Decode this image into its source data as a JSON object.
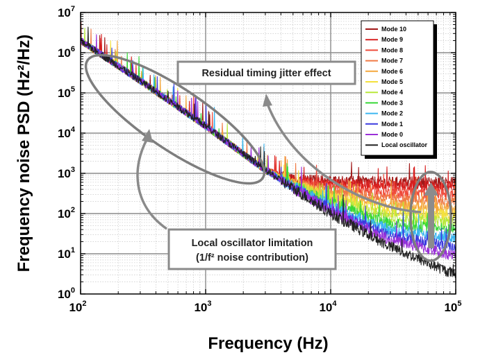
{
  "chart_data": {
    "type": "line",
    "xlabel": "Frequency (Hz)",
    "ylabel": "Frequency noise PSD (Hz²/Hz)",
    "xscale": "log",
    "yscale": "log",
    "xlim": [
      100,
      100000
    ],
    "ylim": [
      1,
      10000000
    ],
    "grid": true,
    "legend_position": "top-right",
    "x_ticks": [
      {
        "base": "10",
        "exp": "2"
      },
      {
        "base": "10",
        "exp": "3"
      },
      {
        "base": "10",
        "exp": "4"
      },
      {
        "base": "10",
        "exp": "5"
      }
    ],
    "y_ticks": [
      {
        "base": "10",
        "exp": "0"
      },
      {
        "base": "10",
        "exp": "1"
      },
      {
        "base": "10",
        "exp": "2"
      },
      {
        "base": "10",
        "exp": "3"
      },
      {
        "base": "10",
        "exp": "4"
      },
      {
        "base": "10",
        "exp": "5"
      },
      {
        "base": "10",
        "exp": "6"
      },
      {
        "base": "10",
        "exp": "7"
      }
    ],
    "series": [
      {
        "name": "Mode 10",
        "color": "#a01818",
        "x": [
          100,
          300,
          1000,
          3000,
          5000,
          10000,
          30000,
          100000
        ],
        "y": [
          2000000,
          200000,
          15000,
          1200,
          700,
          650,
          600,
          600
        ]
      },
      {
        "name": "Mode 9",
        "color": "#d82020",
        "x": [
          100,
          300,
          1000,
          3000,
          5000,
          10000,
          30000,
          100000
        ],
        "y": [
          2000000,
          200000,
          15000,
          1200,
          650,
          550,
          500,
          450
        ]
      },
      {
        "name": "Mode 8",
        "color": "#ef4a3a",
        "x": [
          100,
          300,
          1000,
          3000,
          5000,
          10000,
          30000,
          100000
        ],
        "y": [
          2000000,
          200000,
          15000,
          1200,
          600,
          450,
          330,
          300
        ]
      },
      {
        "name": "Mode 7",
        "color": "#f07a44",
        "x": [
          100,
          300,
          1000,
          3000,
          5000,
          10000,
          30000,
          100000
        ],
        "y": [
          2000000,
          200000,
          15000,
          1200,
          580,
          370,
          230,
          200
        ]
      },
      {
        "name": "Mode 6",
        "color": "#f5a83c",
        "x": [
          100,
          300,
          1000,
          3000,
          5000,
          10000,
          30000,
          100000
        ],
        "y": [
          2000000,
          200000,
          15000,
          1200,
          560,
          300,
          160,
          130
        ]
      },
      {
        "name": "Mode 5",
        "color": "#f4e13c",
        "x": [
          100,
          300,
          1000,
          3000,
          5000,
          10000,
          30000,
          100000
        ],
        "y": [
          2000000,
          200000,
          15000,
          1200,
          540,
          250,
          110,
          90
        ]
      },
      {
        "name": "Mode 4",
        "color": "#b8e83a",
        "x": [
          100,
          300,
          1000,
          3000,
          5000,
          10000,
          30000,
          100000
        ],
        "y": [
          2000000,
          200000,
          15000,
          1200,
          520,
          210,
          80,
          60
        ]
      },
      {
        "name": "Mode 3",
        "color": "#38d838",
        "x": [
          100,
          300,
          1000,
          3000,
          5000,
          10000,
          30000,
          100000
        ],
        "y": [
          2000000,
          200000,
          15000,
          1200,
          500,
          180,
          55,
          40
        ]
      },
      {
        "name": "Mode 2",
        "color": "#3cb6f0",
        "x": [
          100,
          300,
          1000,
          3000,
          5000,
          10000,
          30000,
          100000
        ],
        "y": [
          2000000,
          200000,
          15000,
          1200,
          480,
          150,
          38,
          25
        ]
      },
      {
        "name": "Mode 1",
        "color": "#3a3adf",
        "x": [
          100,
          300,
          1000,
          3000,
          5000,
          10000,
          30000,
          100000
        ],
        "y": [
          2000000,
          200000,
          15000,
          1200,
          460,
          130,
          28,
          14
        ]
      },
      {
        "name": "Mode 0",
        "color": "#9a30d8",
        "x": [
          100,
          300,
          1000,
          3000,
          5000,
          10000,
          30000,
          100000
        ],
        "y": [
          2000000,
          200000,
          15000,
          1200,
          440,
          115,
          22,
          9
        ]
      },
      {
        "name": "Local oscillator",
        "color": "#222222",
        "x": [
          100,
          300,
          1000,
          3000,
          5000,
          10000,
          30000,
          100000
        ],
        "y": [
          2000000,
          200000,
          15000,
          1200,
          420,
          100,
          15,
          3
        ]
      }
    ],
    "annotations": [
      {
        "id": "residual",
        "lines": [
          "Residual timing jitter effect"
        ]
      },
      {
        "id": "local",
        "lines": [
          "Local oscillator limitation",
          "(1/f² noise contribution)"
        ]
      }
    ]
  }
}
